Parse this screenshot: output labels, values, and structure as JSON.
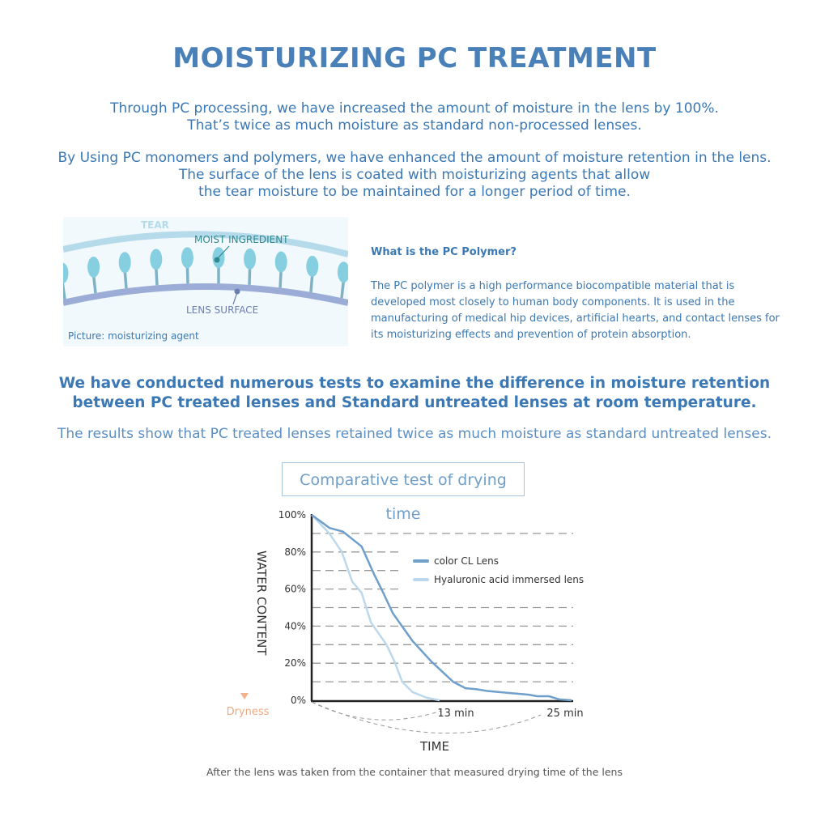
{
  "title": "MOISTURIZING PC TREATMENT",
  "intro": {
    "p1": [
      "Through PC processing, we have increased the amount of moisture in the lens by 100%.",
      "That’s twice as much moisture as standard non-processed lenses."
    ],
    "p2": [
      "By Using PC monomers and polymers, we have enhanced the amount of moisture retention in the lens.",
      "The surface of the lens is coated with moisturizing agents that allow",
      "the tear moisture to be maintained for a longer period of time."
    ]
  },
  "illustration": {
    "tear_label": "TEAR",
    "moist_label": "MOIST INGREDIENT",
    "surface_label": "LENS SURFACE",
    "caption": "Picture: moisturizing agent",
    "colors": {
      "tear": "#b5daea",
      "moist": "#86cfe0",
      "surface": "#9badd6"
    }
  },
  "polymer": {
    "heading": "What is the PC Polymer?",
    "body": "The PC polymer is a high performance biocompatible material that is developed most closely to human body components. It is used in the manufacturing of medical hip devices, artificial hearts, and contact lenses for its moisturizing effects and prevention of protein absorption."
  },
  "headline": [
    "We have conducted numerous tests to examine the difference in moisture retention",
    "between PC treated lenses and Standard untreated lenses at room temperature."
  ],
  "results": "The results show that PC treated lenses retained twice as much moisture as standard untreated lenses.",
  "chart_title": "Comparative test of drying time",
  "caption": "After the lens was taken from the container that measured drying time of the lens",
  "chart_data": {
    "type": "line",
    "title": "Comparative test of drying time",
    "xlabel": "TIME",
    "ylabel": "WATER CONTENT",
    "ylabel_bottom": "Dryness",
    "xlim": [
      0,
      25
    ],
    "ylim": [
      0,
      100
    ],
    "y_ticks": [
      "0%",
      "20%",
      "40%",
      "60%",
      "80%",
      "100%"
    ],
    "x_annotations": [
      "13 min",
      "25 min"
    ],
    "grid": "dashed horizontal every 10%",
    "legend": "right",
    "series": [
      {
        "name": "color CL Lens",
        "color": "#6f9fcb",
        "x": [
          0,
          1.7,
          3.0,
          4.8,
          6.0,
          6.8,
          7.8,
          9.7,
          11.5,
          13.6,
          14.8,
          15.8,
          16.9,
          20.9,
          21.7,
          22.8,
          23.8,
          25
        ],
        "y": [
          100,
          93,
          91,
          83,
          68,
          59,
          47,
          32,
          21,
          10,
          6.5,
          6,
          5,
          3,
          2.2,
          2.2,
          0.5,
          0
        ]
      },
      {
        "name": "Hyaluronic acid immersed lens",
        "color": "#bcd8ec",
        "x": [
          0,
          1.7,
          2.9,
          3.9,
          4.8,
          5.7,
          7.2,
          8.0,
          8.7,
          9.7,
          11.1,
          12.3
        ],
        "y": [
          100,
          90,
          80,
          64,
          58,
          42,
          30,
          20.5,
          10,
          4.4,
          1.3,
          0
        ]
      }
    ]
  }
}
